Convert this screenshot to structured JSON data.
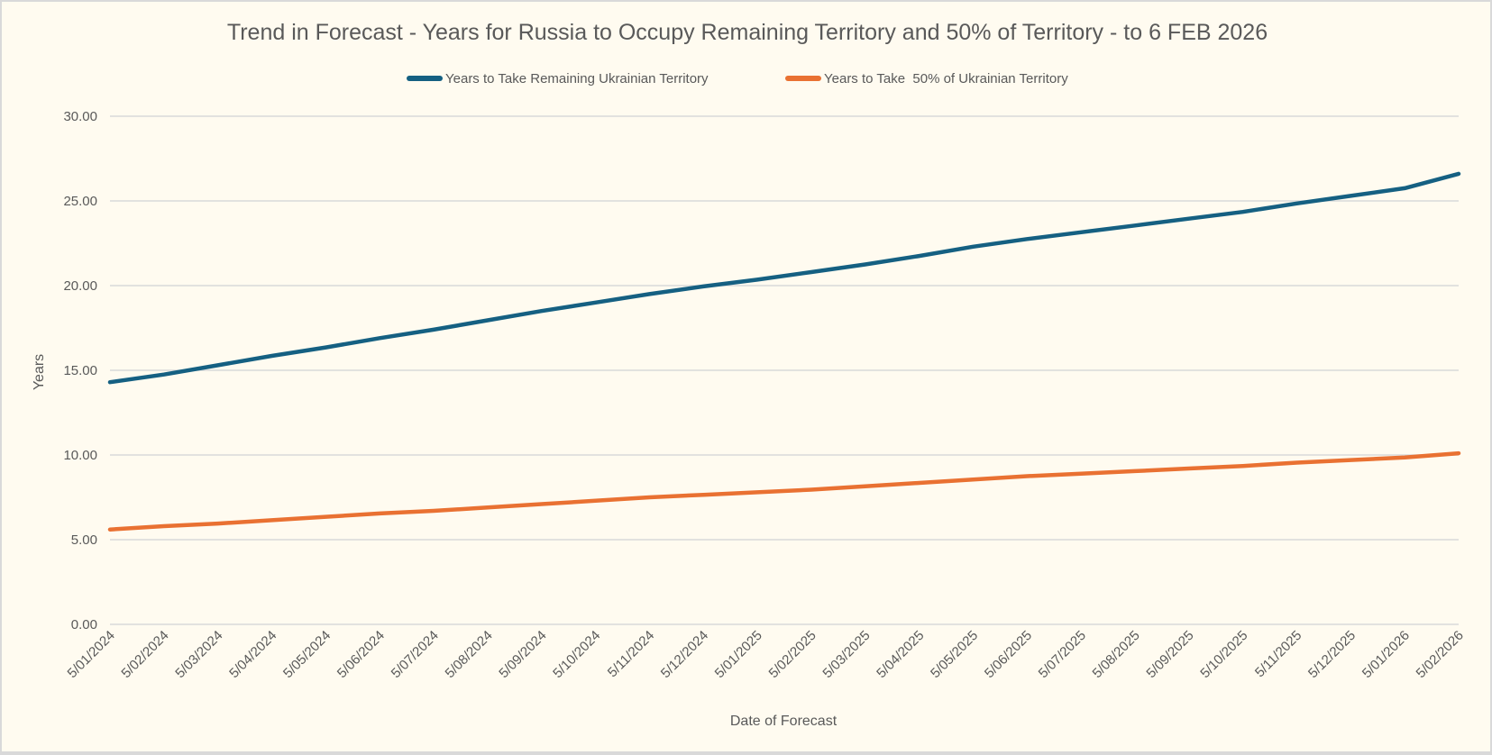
{
  "chart_data": {
    "type": "line",
    "title": "Trend in Forecast - Years for Russia to Occupy Remaining Territory and 50% of Territory - to 6 FEB 2026",
    "xlabel": "Date of Forecast",
    "ylabel": "Years",
    "ylim": [
      0,
      30
    ],
    "yticks": [
      "0.00",
      "5.00",
      "10.00",
      "15.00",
      "20.00",
      "25.00",
      "30.00"
    ],
    "grid": true,
    "legend_position": "top",
    "categories": [
      "5/01/2024",
      "5/02/2024",
      "5/03/2024",
      "5/04/2024",
      "5/05/2024",
      "5/06/2024",
      "5/07/2024",
      "5/08/2024",
      "5/09/2024",
      "5/10/2024",
      "5/11/2024",
      "5/12/2024",
      "5/01/2025",
      "5/02/2025",
      "5/03/2025",
      "5/04/2025",
      "5/05/2025",
      "5/06/2025",
      "5/07/2025",
      "5/08/2025",
      "5/09/2025",
      "5/10/2025",
      "5/11/2025",
      "5/12/2025",
      "5/01/2026",
      "5/02/2026"
    ],
    "series": [
      {
        "name": "Years to Take Remaining Ukrainian Territory",
        "color": "#156082",
        "values": [
          14.3,
          14.75,
          15.3,
          15.85,
          16.35,
          16.9,
          17.4,
          17.95,
          18.5,
          19.0,
          19.5,
          19.95,
          20.35,
          20.8,
          21.25,
          21.75,
          22.3,
          22.75,
          23.15,
          23.55,
          23.95,
          24.35,
          24.85,
          25.3,
          25.75,
          26.6
        ]
      },
      {
        "name": "Years to Take  50% of Ukrainian Territory",
        "color": "#e97132",
        "values": [
          5.6,
          5.8,
          5.95,
          6.15,
          6.35,
          6.55,
          6.7,
          6.9,
          7.1,
          7.3,
          7.5,
          7.65,
          7.8,
          7.95,
          8.15,
          8.35,
          8.55,
          8.75,
          8.9,
          9.05,
          9.2,
          9.35,
          9.55,
          9.7,
          9.85,
          10.1
        ]
      }
    ]
  }
}
